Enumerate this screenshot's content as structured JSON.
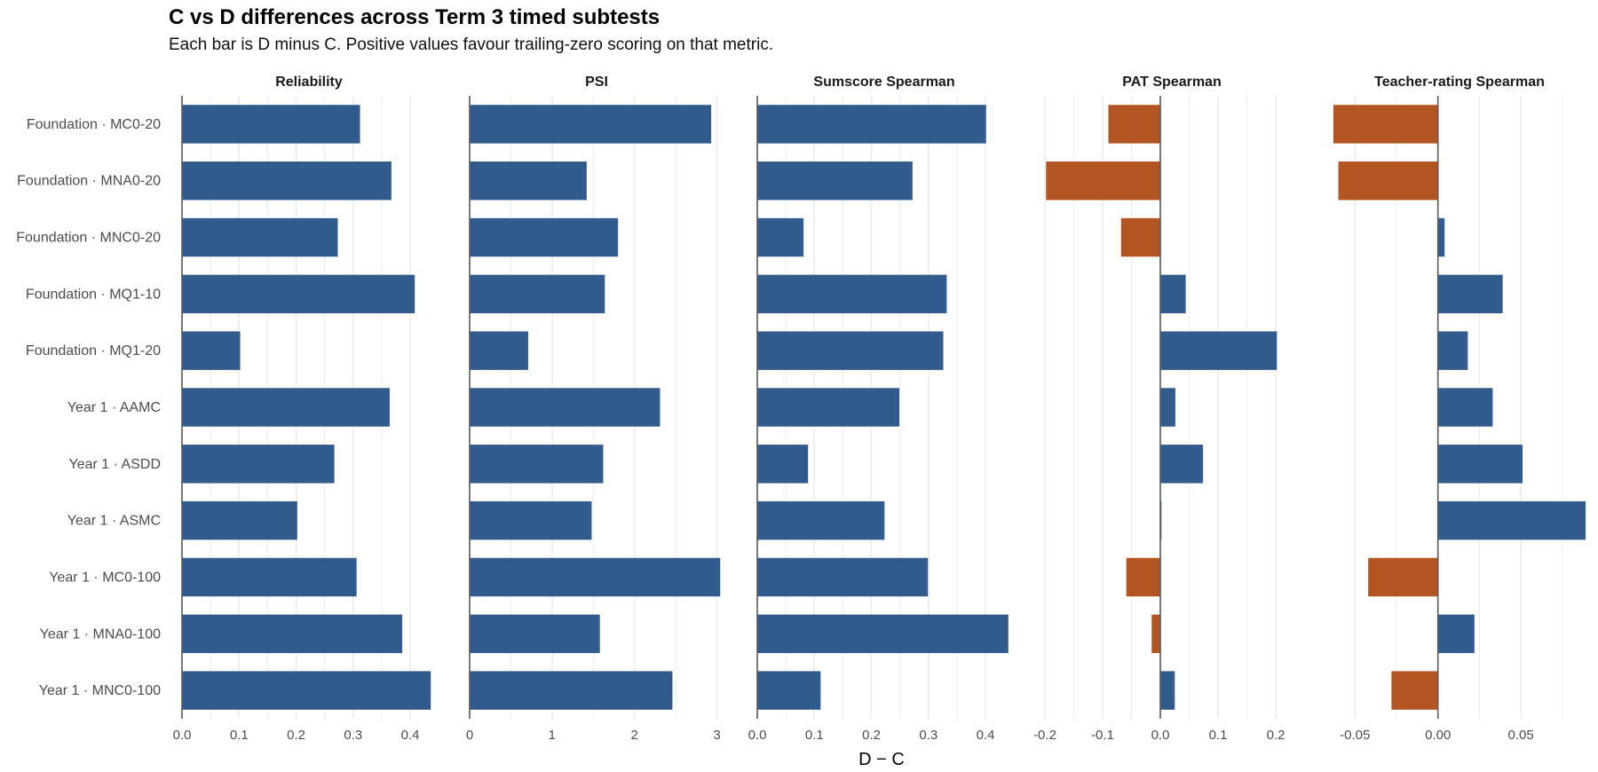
{
  "colors": {
    "positive": "#315b8c",
    "negative": "#b35423",
    "grid": "#ebebeb",
    "zero_line": "#5a5a5a"
  },
  "chart_data": {
    "type": "bar",
    "orientation": "horizontal",
    "title": "C vs D differences across Term 3 timed subtests",
    "subtitle": "Each bar is D minus C. Positive values favour trailing-zero scoring on that metric.",
    "xlabel": "D − C",
    "ylabel": "",
    "grid": true,
    "categories": [
      "Foundation · MC0-20",
      "Foundation · MNA0-20",
      "Foundation · MNC0-20",
      "Foundation · MQ1-10",
      "Foundation · MQ1-20",
      "Year 1 · AAMC",
      "Year 1 · ASDD",
      "Year 1 · ASMC",
      "Year 1 · MC0-100",
      "Year 1 · MNA0-100",
      "Year 1 · MNC0-100"
    ],
    "panels": [
      {
        "name": "Reliability",
        "xlim": [
          0,
          0.445
        ],
        "ticks": [
          "0.0",
          "0.1",
          "0.2",
          "0.3",
          "0.4"
        ],
        "tick_values": [
          0,
          0.1,
          0.2,
          0.3,
          0.4
        ],
        "values": [
          0.312,
          0.367,
          0.273,
          0.408,
          0.102,
          0.364,
          0.267,
          0.202,
          0.306,
          0.386,
          0.436
        ]
      },
      {
        "name": "PSI",
        "xlim": [
          0,
          3.08
        ],
        "ticks": [
          "0",
          "1",
          "2",
          "3"
        ],
        "tick_values": [
          0,
          1,
          2,
          3
        ],
        "values": [
          2.93,
          1.42,
          1.8,
          1.64,
          0.71,
          2.31,
          1.62,
          1.48,
          3.04,
          1.58,
          2.46
        ]
      },
      {
        "name": "Sumscore Spearman",
        "xlim": [
          0,
          0.445
        ],
        "ticks": [
          "0.0",
          "0.1",
          "0.2",
          "0.3",
          "0.4"
        ],
        "tick_values": [
          0,
          0.1,
          0.2,
          0.3,
          0.4
        ],
        "values": [
          0.401,
          0.272,
          0.081,
          0.332,
          0.326,
          0.249,
          0.089,
          0.223,
          0.299,
          0.44,
          0.111
        ]
      },
      {
        "name": "PAT Spearman",
        "xlim": [
          -0.2,
          0.24
        ],
        "ticks": [
          "-0.2",
          "-0.1",
          "0.0",
          "0.1",
          "0.2"
        ],
        "tick_values": [
          -0.2,
          -0.1,
          0,
          0.1,
          0.2
        ],
        "values": [
          -0.09,
          -0.198,
          -0.068,
          0.044,
          0.202,
          0.026,
          0.074,
          0.002,
          -0.059,
          -0.015,
          0.025
        ]
      },
      {
        "name": "Teacher-rating Spearman",
        "xlim": [
          -0.0635,
          0.0895
        ],
        "ticks": [
          "-0.05",
          "0.00",
          "0.05"
        ],
        "tick_values": [
          -0.05,
          0,
          0.05
        ],
        "values": [
          -0.063,
          -0.06,
          0.004,
          0.039,
          0.018,
          0.033,
          0.051,
          0.089,
          -0.042,
          0.022,
          -0.028
        ]
      }
    ]
  }
}
